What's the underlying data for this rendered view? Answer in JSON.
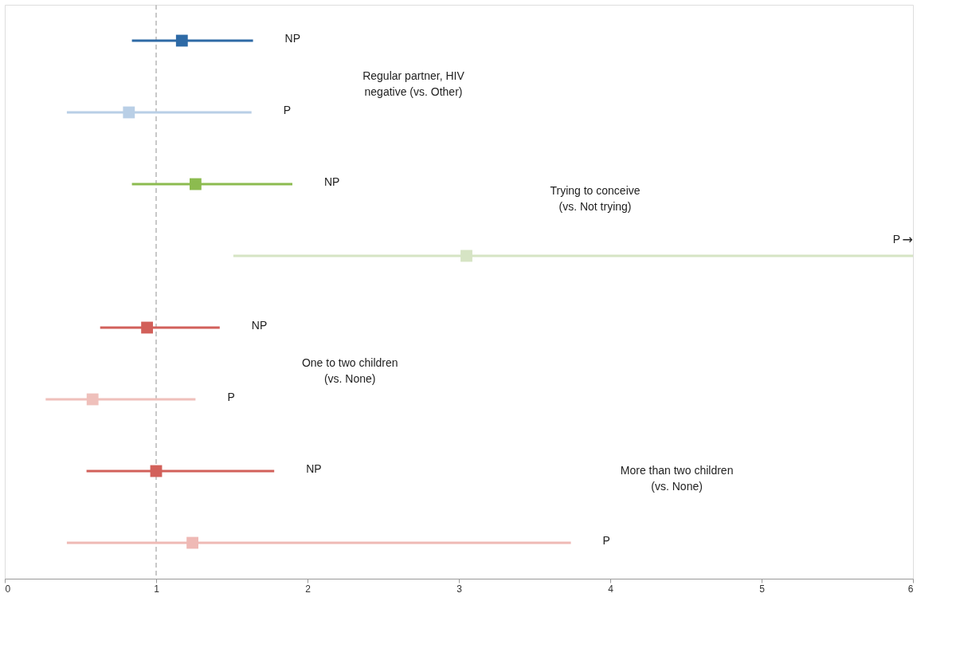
{
  "chart_data": {
    "type": "scatter",
    "orientation": "horizontal",
    "categories": [
      null,
      null,
      null,
      null,
      null,
      null,
      null,
      null
    ],
    "series": [
      {
        "name": "NP",
        "values": [
          1.17,
          null,
          1.26,
          null,
          0.94,
          null,
          1.0,
          null
        ],
        "colors": [
          "#2e6aa6",
          null,
          "#8cbb4f",
          null,
          "#d2605a",
          null,
          "#d2605a",
          null
        ],
        "errors": [
          [
            0.84,
            1.64
          ],
          null,
          [
            0.84,
            1.9
          ],
          null,
          [
            0.63,
            1.42
          ],
          null,
          [
            0.54,
            1.78
          ],
          null
        ]
      },
      {
        "name": "P",
        "values": [
          null,
          0.82,
          null,
          3.05,
          null,
          0.58,
          null,
          1.24
        ],
        "colors": [
          null,
          "#b9cfe6",
          null,
          "#d6e4c4",
          null,
          "#efc0bb",
          null,
          "#efb9b5"
        ],
        "errors": [
          null,
          [
            0.41,
            1.63
          ],
          null,
          [
            1.51,
            6
          ],
          null,
          [
            0.27,
            1.26
          ],
          null,
          [
            0.41,
            3.74
          ]
        ]
      }
    ],
    "xlim": [
      0,
      6
    ],
    "xticks": [
      0,
      1,
      2,
      3,
      4,
      5,
      6
    ],
    "ref_lines": [
      {
        "axis": "x",
        "value": 1,
        "color": "#c8c8c8",
        "line_style": "dashed"
      }
    ],
    "annotations": [
      "Regular partner, HIV negative (vs. Other)",
      "Trying to conceive (vs. Not trying)",
      "One to two children (vs. None)",
      "More than two children (vs. None)",
      "→"
    ],
    "marker": "square",
    "grid": false
  }
}
